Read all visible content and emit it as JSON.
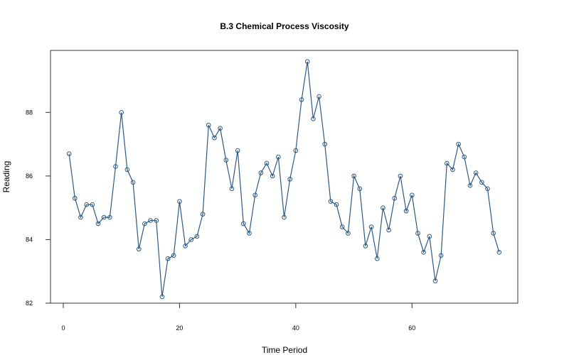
{
  "chart_data": {
    "type": "line",
    "title": "B.3  Chemical Process Viscosity",
    "xlabel": "Time Period",
    "ylabel": "Reading",
    "xlim": [
      -2.2,
      78.2
    ],
    "ylim": [
      82,
      89.95
    ],
    "x_ticks": [
      0,
      20,
      40,
      60
    ],
    "y_ticks": [
      82,
      84,
      86,
      88
    ],
    "grid": false,
    "markers": "open-circle",
    "colors": {
      "series": "#2e5a82",
      "axis": "#333333",
      "frame": "#333333"
    },
    "series": [
      {
        "x": [
          1,
          2,
          3,
          4,
          5,
          6,
          7,
          8,
          9,
          10,
          11,
          12,
          13,
          14,
          15,
          16,
          17,
          18,
          19,
          20,
          21,
          22,
          23,
          24,
          25,
          26,
          27,
          28,
          29,
          30,
          31,
          32,
          33,
          34,
          35,
          36,
          37,
          38,
          39,
          40,
          41,
          42,
          43,
          44,
          45,
          46,
          47,
          48,
          49,
          50,
          51,
          52,
          53,
          54,
          55,
          56,
          57,
          58,
          59,
          60,
          61,
          62,
          63,
          64,
          65,
          66,
          67,
          68,
          69,
          70,
          71,
          72,
          73,
          74,
          75
        ],
        "values": [
          86.7,
          85.3,
          84.7,
          85.1,
          85.1,
          84.5,
          84.7,
          84.7,
          86.3,
          88.0,
          86.2,
          85.8,
          83.7,
          84.5,
          84.6,
          84.6,
          82.2,
          83.4,
          83.5,
          85.2,
          83.8,
          84.0,
          84.1,
          84.8,
          87.6,
          87.2,
          87.5,
          86.5,
          85.6,
          86.8,
          84.5,
          84.2,
          85.4,
          86.1,
          86.4,
          86.0,
          86.6,
          84.7,
          85.9,
          86.8,
          88.4,
          89.6,
          87.8,
          88.5,
          87.0,
          85.2,
          85.1,
          84.4,
          84.2,
          86.0,
          85.6,
          83.8,
          84.4,
          83.4,
          85.0,
          84.3,
          85.3,
          86.0,
          84.9,
          85.4,
          84.2,
          83.6,
          84.1,
          82.7,
          83.5,
          86.4,
          86.2,
          87.0,
          86.6,
          85.7,
          86.1,
          85.8,
          85.6,
          84.2,
          83.6
        ]
      }
    ]
  }
}
